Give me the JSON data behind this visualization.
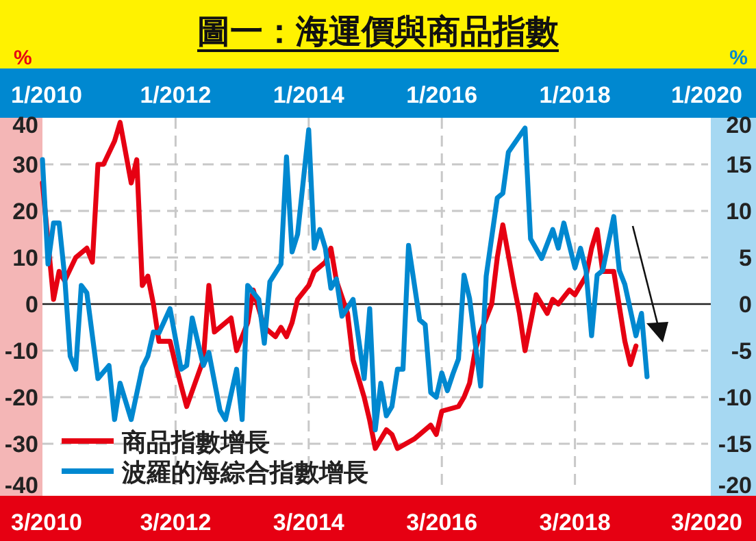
{
  "chart_data": [
    {
      "type": "line",
      "title": "圖一：海運價與商品指數",
      "ylabel": "%",
      "xlim": [
        "2010-03",
        "2020-03"
      ],
      "xticks": [
        {
          "value": "2010-03",
          "label": "3/2010"
        },
        {
          "value": "2012-03",
          "label": "3/2012"
        },
        {
          "value": "2014-03",
          "label": "3/2014"
        },
        {
          "value": "2016-03",
          "label": "3/2016"
        },
        {
          "value": "2018-03",
          "label": "3/2018"
        },
        {
          "value": "2020-03",
          "label": "3/2020"
        }
      ],
      "ylim": [
        -40,
        40
      ],
      "yticks": [
        -40,
        -30,
        -20,
        -10,
        0,
        10,
        20,
        30,
        40
      ],
      "grid": true,
      "legend": "bottom left",
      "line_style": "solid",
      "series": [
        {
          "name": "商品指數增長",
          "color": "#e60012",
          "x": [
            "2010-03",
            "2010-05",
            "2010-06",
            "2010-07",
            "2010-09",
            "2010-11",
            "2010-12",
            "2011-01",
            "2011-02",
            "2011-04",
            "2011-05",
            "2011-07",
            "2011-08",
            "2011-09",
            "2011-10",
            "2011-11",
            "2011-12",
            "2012-02",
            "2012-03",
            "2012-05",
            "2012-08",
            "2012-09",
            "2012-10",
            "2013-01",
            "2013-02",
            "2013-04",
            "2013-05",
            "2013-07",
            "2013-09",
            "2013-10",
            "2013-11",
            "2013-12",
            "2014-01",
            "2014-03",
            "2014-04",
            "2014-06",
            "2014-07",
            "2014-08",
            "2014-10",
            "2014-11",
            "2015-01",
            "2015-02",
            "2015-03",
            "2015-05",
            "2015-06",
            "2015-07",
            "2015-10",
            "2015-11",
            "2016-01",
            "2016-02",
            "2016-03",
            "2016-06",
            "2016-07",
            "2016-08",
            "2016-09",
            "2016-10",
            "2016-12",
            "2017-01",
            "2017-02",
            "2017-04",
            "2017-05",
            "2017-06",
            "2017-08",
            "2017-10",
            "2017-11",
            "2017-12",
            "2018-02",
            "2018-03",
            "2018-05",
            "2018-06",
            "2018-07",
            "2018-08",
            "2018-10",
            "2018-12",
            "2019-01",
            "2019-02"
          ],
          "values": [
            26,
            1,
            7,
            5,
            10,
            12,
            9,
            30,
            30,
            35,
            39,
            26,
            31,
            4,
            6,
            0,
            -8,
            -8,
            -13,
            -22,
            -12,
            4,
            -6,
            -3,
            -10,
            -4,
            3,
            -5,
            -7,
            -5,
            -7,
            -4,
            1,
            4,
            7,
            9,
            12,
            5,
            -2,
            -12,
            -20,
            -25,
            -31,
            -27,
            -28,
            -31,
            -29,
            -28,
            -26,
            -28,
            -23,
            -22,
            -20,
            -17,
            -10,
            -6,
            0,
            10,
            17,
            4,
            -2,
            -10,
            2,
            -2,
            1,
            0,
            3,
            2,
            6,
            12,
            16,
            7,
            7,
            -8,
            -13,
            -9
          ]
        }
      ]
    },
    {
      "type": "line",
      "ylabel": "%",
      "xlim": [
        "2010-01",
        "2020-01"
      ],
      "xticks": [
        {
          "value": "2010-01",
          "label": "1/2010"
        },
        {
          "value": "2012-01",
          "label": "1/2012"
        },
        {
          "value": "2014-01",
          "label": "1/2014"
        },
        {
          "value": "2016-01",
          "label": "1/2016"
        },
        {
          "value": "2018-01",
          "label": "1/2018"
        },
        {
          "value": "2020-01",
          "label": "1/2020"
        }
      ],
      "ylim": [
        -20,
        20
      ],
      "yticks": [
        -20,
        -15,
        -10,
        -5,
        0,
        5,
        10,
        15,
        20
      ],
      "legend": "bottom left",
      "line_style": "solid",
      "series": [
        {
          "name": "波羅的海綜合指數增長",
          "color": "#0088d0",
          "x": [
            "2010-01",
            "2010-02",
            "2010-03",
            "2010-04",
            "2010-05",
            "2010-06",
            "2010-07",
            "2010-08",
            "2010-09",
            "2010-11",
            "2011-01",
            "2011-02",
            "2011-03",
            "2011-05",
            "2011-07",
            "2011-08",
            "2011-09",
            "2011-10",
            "2011-12",
            "2012-02",
            "2012-03",
            "2012-04",
            "2012-06",
            "2012-07",
            "2012-09",
            "2012-10",
            "2012-12",
            "2013-01",
            "2013-02",
            "2013-04",
            "2013-05",
            "2013-06",
            "2013-08",
            "2013-09",
            "2013-10",
            "2013-11",
            "2014-01",
            "2014-02",
            "2014-03",
            "2014-04",
            "2014-05",
            "2014-06",
            "2014-07",
            "2014-09",
            "2014-11",
            "2014-12",
            "2015-01",
            "2015-02",
            "2015-03",
            "2015-04",
            "2015-05",
            "2015-06",
            "2015-07",
            "2015-09",
            "2015-10",
            "2015-11",
            "2015-12",
            "2016-01",
            "2016-02",
            "2016-03",
            "2016-04",
            "2016-05",
            "2016-06",
            "2016-08",
            "2016-09",
            "2016-11",
            "2016-12",
            "2017-01",
            "2017-04",
            "2017-05",
            "2017-07",
            "2017-09",
            "2017-10",
            "2017-11",
            "2018-01",
            "2018-02",
            "2018-03",
            "2018-04",
            "2018-05",
            "2018-06",
            "2018-08",
            "2018-09",
            "2018-10",
            "2018-12",
            "2019-01",
            "2019-02"
          ],
          "values": [
            15.5,
            4.3,
            8.7,
            8.7,
            3,
            -5.6,
            -7,
            2,
            1.2,
            -8,
            -6.6,
            -12.4,
            -8.5,
            -12.4,
            -6.8,
            -5.6,
            -3,
            -3.1,
            -0.5,
            -7,
            -6.6,
            -1.5,
            -6.6,
            -5.2,
            -11.4,
            -12.4,
            -7,
            -12.4,
            2,
            0.5,
            -4.2,
            2.4,
            4.3,
            15.8,
            5.6,
            7.5,
            18.7,
            6,
            8,
            6,
            1.7,
            2.7,
            -1.3,
            0.5,
            -8,
            -0.5,
            -13.5,
            -8.5,
            -12,
            -11,
            -7,
            -7,
            6.3,
            -1.7,
            -2.2,
            -9.5,
            -10,
            -7.4,
            -9.3,
            -7.5,
            -5.9,
            3.1,
            0.6,
            -8.8,
            3,
            11.4,
            11.9,
            16.3,
            18.9,
            7,
            4.9,
            8,
            6,
            8.7,
            3.9,
            6,
            3.6,
            -3.4,
            3.1,
            3.6,
            9.4,
            3.6,
            2.1,
            -3.4,
            -1,
            -7.8
          ]
        }
      ]
    }
  ]
}
